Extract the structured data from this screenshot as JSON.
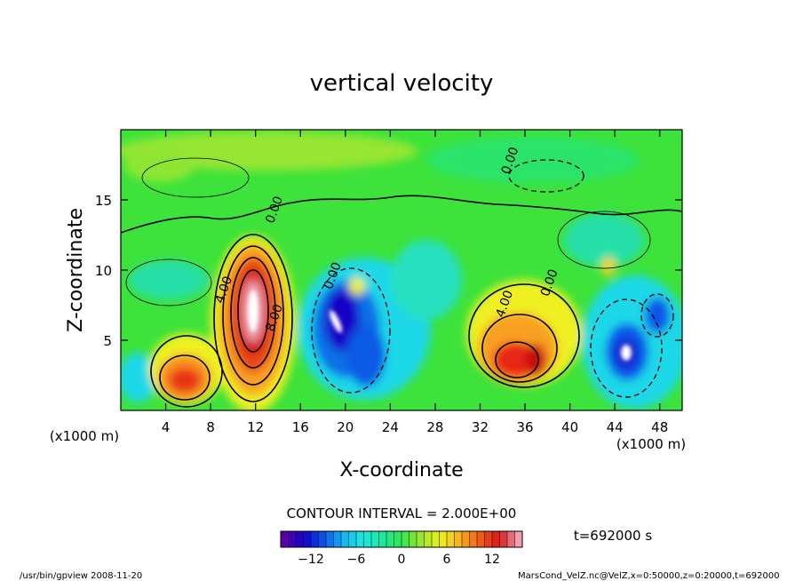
{
  "chart_data": {
    "type": "heatmap",
    "title": "vertical velocity",
    "xlabel": "X-coordinate",
    "ylabel": "Z-coordinate",
    "x_unit": "(x1000 m)",
    "y_unit": "(x1000 m)",
    "xlim": [
      0,
      50
    ],
    "ylim": [
      0,
      20
    ],
    "x_ticks": [
      4,
      8,
      12,
      16,
      20,
      24,
      28,
      32,
      36,
      40,
      44,
      48
    ],
    "y_ticks": [
      5,
      10,
      15
    ],
    "contour_interval_text": "CONTOUR INTERVAL = 2.000E+00",
    "contour_labels": [
      {
        "text": "4.00",
        "x": 9.5,
        "y": 8.5
      },
      {
        "text": "8.00",
        "x": 14.0,
        "y": 6.5
      },
      {
        "text": "0.00",
        "x": 14.0,
        "y": 14.2
      },
      {
        "text": "0.00",
        "x": 19.2,
        "y": 9.5
      },
      {
        "text": "0.00",
        "x": 35.0,
        "y": 17.7
      },
      {
        "text": "4.00",
        "x": 34.5,
        "y": 7.5
      },
      {
        "text": "0.00",
        "x": 38.5,
        "y": 9.0
      }
    ],
    "features": [
      {
        "type": "updraft",
        "x": 5.8,
        "y": 2.6,
        "peak": 8
      },
      {
        "type": "updraft",
        "x": 11.8,
        "y": 6.8,
        "peak": 16
      },
      {
        "type": "downdraft",
        "x": 19.0,
        "y": 6.0,
        "peak": -14
      },
      {
        "type": "downdraft",
        "x": 22.0,
        "y": 3.5,
        "peak": -8
      },
      {
        "type": "updraft",
        "x": 35.2,
        "y": 3.8,
        "peak": 10
      },
      {
        "type": "downdraft",
        "x": 44.6,
        "y": 4.2,
        "peak": -14
      },
      {
        "type": "downdraft",
        "x": 47.5,
        "y": 6.8,
        "peak": -8
      }
    ],
    "colorbar": {
      "min": -16,
      "max": 16,
      "ticks": [
        -12,
        -6,
        0,
        6,
        12
      ],
      "colors": [
        "#5b00a8",
        "#1500c8",
        "#0a55e8",
        "#12b5f0",
        "#1de8e0",
        "#1de8a0",
        "#30e850",
        "#9ee52c",
        "#eef020",
        "#f8b020",
        "#f06018",
        "#d81818",
        "#f0a0b0"
      ]
    },
    "time_label": "t=692000 s"
  },
  "footer": {
    "program": "/usr/bin/gpview   2008-11-20",
    "source": "MarsCond_VelZ.nc@VelZ,x=0:50000,z=0:20000,t=692000"
  }
}
